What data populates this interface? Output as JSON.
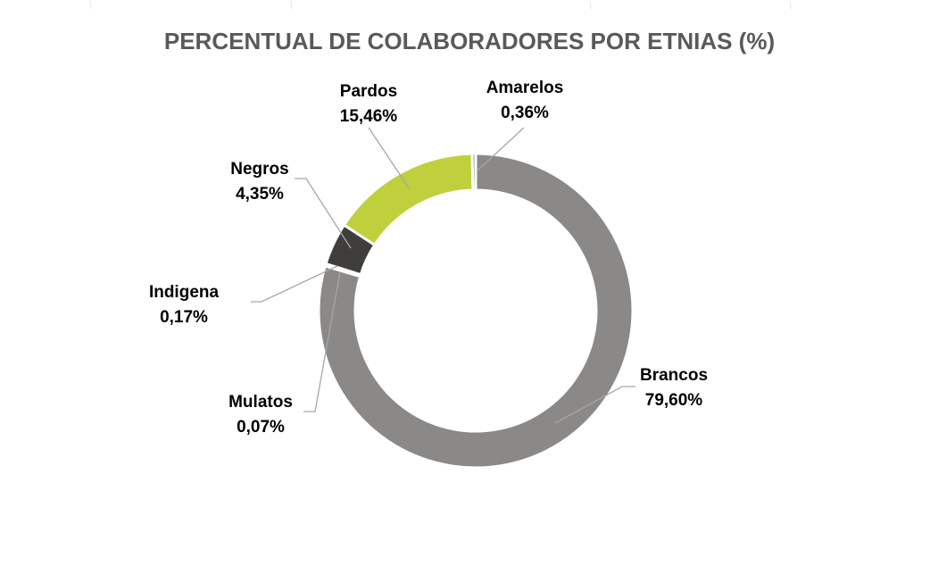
{
  "chart_data": {
    "type": "pie",
    "donut": true,
    "title": "PERCENTUAL DE COLABORADORES POR ETNIAS (%)",
    "slices": [
      {
        "name": "Brancos",
        "value": 79.6,
        "label": "79,60%",
        "color": "#8a8987"
      },
      {
        "name": "Mulatos",
        "value": 0.07,
        "label": "0,07%",
        "color": "#8a8987"
      },
      {
        "name": "Indigena",
        "value": 0.17,
        "label": "0,17%",
        "color": "#8a8987"
      },
      {
        "name": "Negros",
        "value": 4.35,
        "label": "4,35%",
        "color": "#3f3e3c"
      },
      {
        "name": "Pardos",
        "value": 15.46,
        "label": "15,46%",
        "color": "#bfd03c"
      },
      {
        "name": "Amarelos",
        "value": 0.36,
        "label": "0,36%",
        "color": "#8a8987"
      }
    ],
    "legend": "none",
    "grid": false
  }
}
